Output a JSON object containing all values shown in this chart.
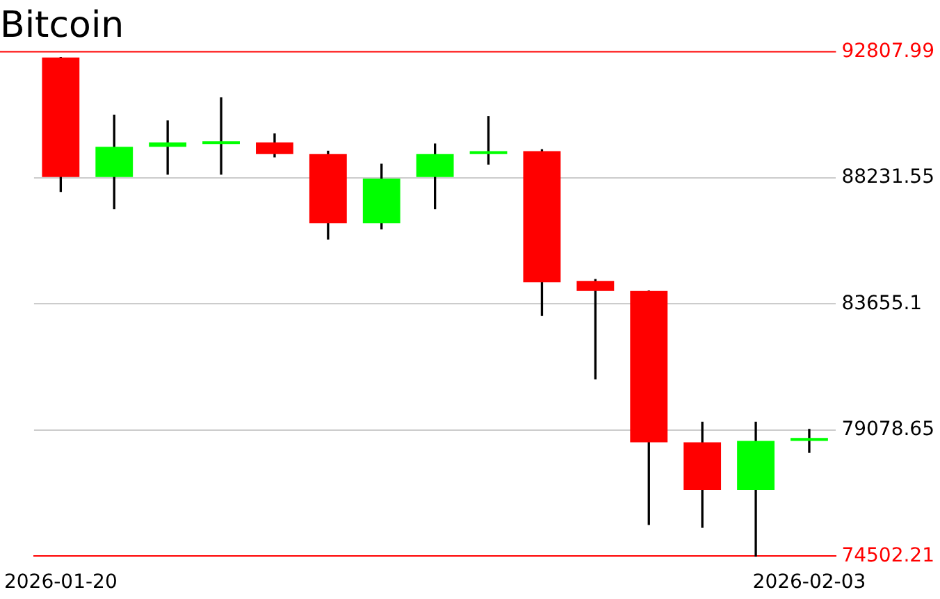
{
  "chart_data": {
    "type": "candlestick",
    "title": "Bitcoin",
    "categories": [
      "2026-01-20",
      null,
      null,
      null,
      null,
      null,
      null,
      null,
      null,
      null,
      null,
      null,
      null,
      null,
      "2026-02-03"
    ],
    "ohlc": [
      [
        92600,
        92600,
        87735,
        88258
      ],
      [
        88258,
        90507,
        87107,
        89356
      ],
      [
        89356,
        90298,
        88362,
        89513
      ],
      [
        89461,
        91134,
        88362,
        89513
      ],
      [
        89513,
        89827,
        88990,
        89094
      ],
      [
        89094,
        89199,
        86009,
        86584
      ],
      [
        86584,
        88728,
        86375,
        88206
      ],
      [
        88258,
        89461,
        87107,
        89094
      ],
      [
        89094,
        90454,
        88728,
        89199
      ],
      [
        89199,
        89252,
        83237,
        84440
      ],
      [
        84492,
        84545,
        80935,
        84126
      ],
      [
        84126,
        84126,
        75653,
        78634
      ],
      [
        78634,
        79366,
        75548,
        76908
      ],
      [
        76908,
        79366,
        74502.21,
        78686
      ],
      [
        78686,
        79105,
        78268,
        78790
      ]
    ],
    "colors": [
      "#ff0000",
      "#00ff00",
      "#00ff00",
      "#00ff00",
      "#ff0000",
      "#ff0000",
      "#00ff00",
      "#00ff00",
      "#00ff00",
      "#ff0000",
      "#ff0000",
      "#ff0000",
      "#ff0000",
      "#00ff00",
      "#00ff00"
    ],
    "ylim": [
      74502.21,
      92807.99
    ],
    "yticks": [
      74502.21,
      79078.65,
      83655.1,
      88231.55,
      92807.99
    ],
    "grid": "y",
    "ref_lines": [
      {
        "axis": "y",
        "value": 92807.99,
        "color": "#ff0000"
      }
    ]
  }
}
